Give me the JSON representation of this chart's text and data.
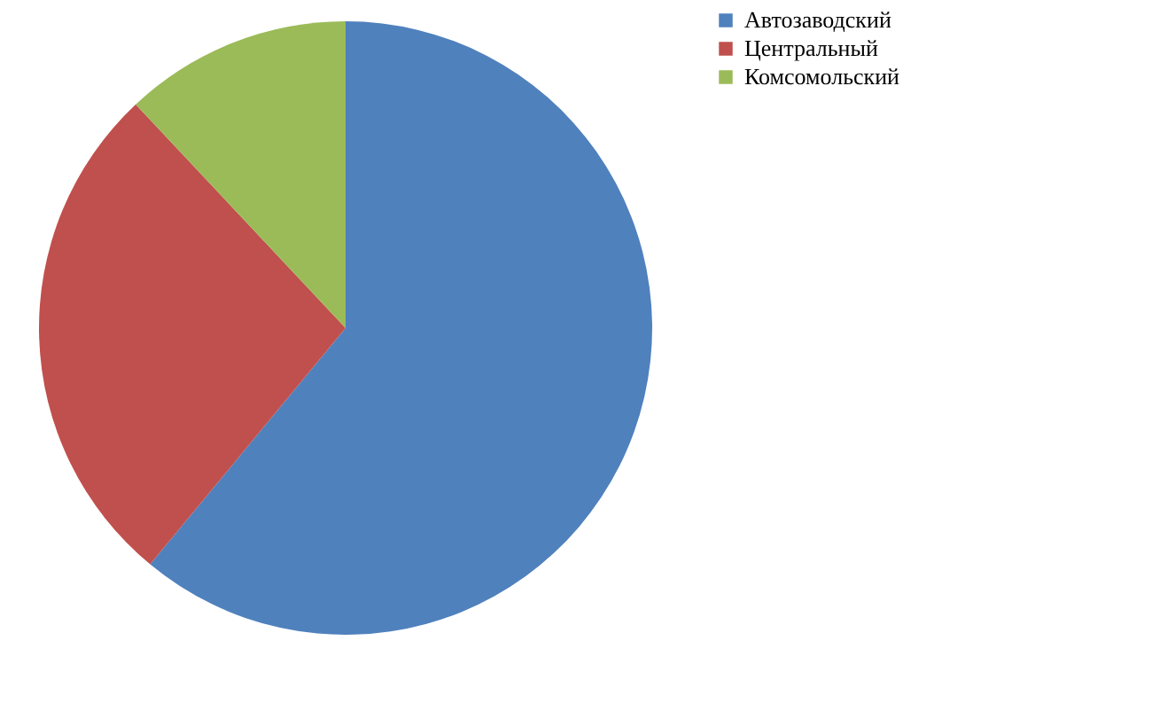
{
  "chart_data": {
    "type": "pie",
    "categories": [
      "Автозаводский",
      "Центральный",
      "Комсомольский"
    ],
    "values": [
      61,
      27,
      12
    ],
    "colors": [
      "#4f81bd",
      "#c0504d",
      "#9bbb59"
    ],
    "legend": "right"
  }
}
